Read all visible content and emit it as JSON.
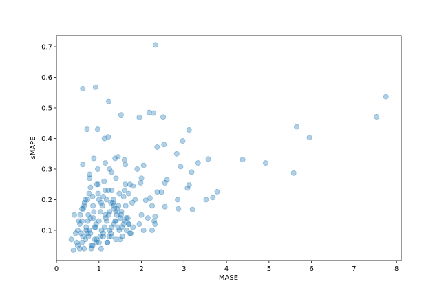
{
  "chart_data": {
    "type": "scatter",
    "xlabel": "MASE",
    "ylabel": "sMAPE",
    "color": "#1f77b4",
    "xlim": [
      0,
      8.11
    ],
    "ylim": [
      0.001,
      0.736
    ],
    "xticks": [
      0,
      1,
      2,
      3,
      4,
      5,
      6,
      7,
      8
    ],
    "yticks": [
      0.1,
      0.2,
      0.3,
      0.4,
      0.5,
      0.6,
      0.7
    ],
    "x": [
      2.33,
      0.62,
      0.92,
      1.23,
      7.75,
      7.53,
      5.65,
      5.95,
      4.38,
      4.92,
      5.58,
      3.57,
      3.33,
      3.78,
      3.68,
      3.52,
      3.12,
      2.97,
      2.83,
      2.92,
      3.18,
      3.12,
      3.08,
      3.2,
      2.87,
      2.85,
      2.55,
      2.53,
      2.37,
      2.51,
      2.18,
      2.28,
      1.95,
      1.52,
      0.72,
      0.97,
      1.13,
      1.22,
      2.05,
      1.6,
      1.62,
      2.6,
      2.55,
      2.37,
      2.47,
      2.2,
      2.25,
      2.32,
      2.32,
      2.3,
      2.15,
      2.0,
      2.05,
      2.25,
      1.95,
      1.85,
      2.1,
      2.0,
      1.98,
      1.9,
      0.62,
      0.88,
      0.97,
      0.78,
      0.78,
      1.38,
      1.45,
      1.25,
      1.3,
      1.4,
      1.15,
      1.73,
      1.62,
      1.8,
      1.6,
      1.7,
      0.35,
      0.4,
      0.45,
      0.5,
      0.55,
      0.6,
      0.65,
      0.7,
      0.75,
      0.8,
      0.85,
      0.9,
      0.95,
      1.0,
      1.05,
      1.1,
      1.15,
      1.2,
      1.25,
      1.3,
      1.35,
      1.4,
      1.45,
      1.5,
      1.55,
      1.6,
      1.65,
      1.7,
      1.75,
      1.8,
      0.42,
      0.48,
      0.53,
      0.58,
      0.63,
      0.68,
      0.73,
      0.78,
      0.83,
      0.88,
      0.93,
      0.98,
      1.03,
      1.08,
      1.13,
      1.18,
      1.23,
      1.28,
      1.33,
      1.38,
      1.43,
      1.48,
      1.53,
      1.58,
      1.63,
      1.68,
      1.73,
      1.78,
      0.5,
      0.56,
      0.62,
      0.68,
      0.74,
      0.8,
      0.86,
      0.92,
      0.98,
      1.04,
      1.1,
      1.16,
      1.22,
      1.28,
      1.34,
      1.4,
      1.46,
      1.52,
      1.58,
      1.64,
      1.7,
      0.55,
      0.6,
      0.66,
      0.72,
      0.77,
      0.82,
      0.87,
      0.94,
      1.0,
      1.06,
      1.12,
      1.18,
      1.24,
      1.3,
      1.36,
      1.42,
      1.48,
      1.54,
      0.6,
      0.7,
      0.8,
      0.9,
      1.0,
      1.1,
      1.2,
      1.3,
      1.4,
      1.5,
      0.65,
      0.75,
      0.85,
      0.95,
      1.05,
      1.15,
      1.25,
      1.35
    ],
    "y": [
      0.706,
      0.563,
      0.568,
      0.521,
      0.537,
      0.471,
      0.438,
      0.403,
      0.331,
      0.32,
      0.287,
      0.333,
      0.32,
      0.226,
      0.207,
      0.2,
      0.428,
      0.392,
      0.35,
      0.308,
      0.29,
      0.248,
      0.238,
      0.168,
      0.17,
      0.2,
      0.177,
      0.38,
      0.372,
      0.47,
      0.485,
      0.483,
      0.469,
      0.477,
      0.43,
      0.43,
      0.4,
      0.405,
      0.312,
      0.33,
      0.315,
      0.265,
      0.255,
      0.225,
      0.225,
      0.205,
      0.18,
      0.145,
      0.12,
      0.13,
      0.14,
      0.15,
      0.1,
      0.1,
      0.12,
      0.2,
      0.198,
      0.27,
      0.255,
      0.3,
      0.315,
      0.335,
      0.3,
      0.283,
      0.27,
      0.335,
      0.34,
      0.3,
      0.29,
      0.27,
      0.32,
      0.25,
      0.25,
      0.245,
      0.23,
      0.22,
      0.07,
      0.035,
      0.09,
      0.05,
      0.12,
      0.06,
      0.04,
      0.1,
      0.08,
      0.14,
      0.05,
      0.11,
      0.07,
      0.13,
      0.04,
      0.09,
      0.15,
      0.06,
      0.1,
      0.08,
      0.12,
      0.07,
      0.11,
      0.14,
      0.08,
      0.13,
      0.1,
      0.12,
      0.09,
      0.11,
      0.15,
      0.06,
      0.13,
      0.09,
      0.17,
      0.07,
      0.2,
      0.1,
      0.05,
      0.16,
      0.12,
      0.22,
      0.08,
      0.18,
      0.11,
      0.2,
      0.15,
      0.09,
      0.19,
      0.13,
      0.17,
      0.1,
      0.16,
      0.12,
      0.18,
      0.14,
      0.09,
      0.19,
      0.1,
      0.15,
      0.08,
      0.2,
      0.13,
      0.24,
      0.18,
      0.11,
      0.25,
      0.16,
      0.21,
      0.14,
      0.23,
      0.19,
      0.2,
      0.16,
      0.18,
      0.15,
      0.21,
      0.14,
      0.12,
      0.04,
      0.17,
      0.19,
      0.09,
      0.22,
      0.04,
      0.14,
      0.06,
      0.2,
      0.1,
      0.26,
      0.13,
      0.08,
      0.23,
      0.17,
      0.15,
      0.22,
      0.11,
      0.13,
      0.11,
      0.09,
      0.07,
      0.06,
      0.08,
      0.06,
      0.11,
      0.13,
      0.07,
      0.18,
      0.15,
      0.21,
      0.25,
      0.19,
      0.23,
      0.16,
      0.18
    ]
  }
}
